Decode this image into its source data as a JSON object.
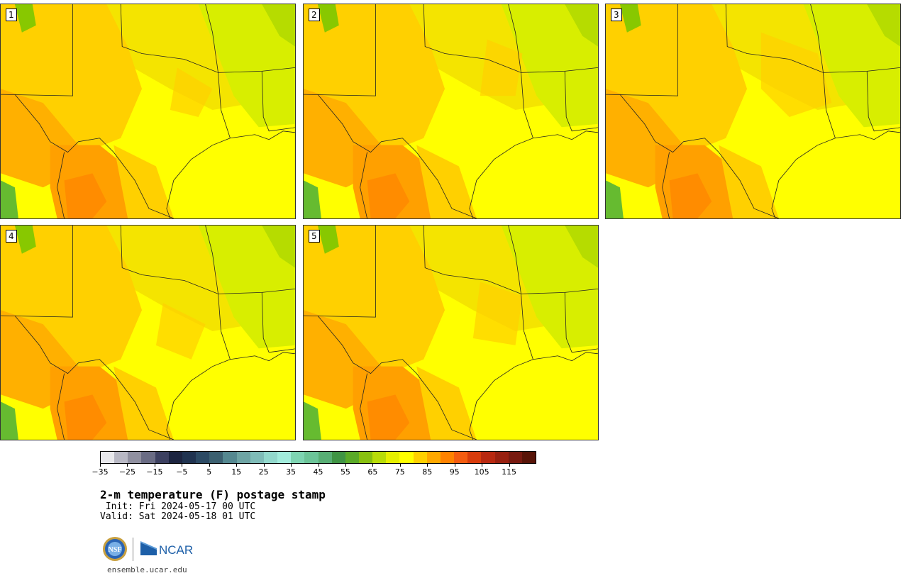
{
  "panels": [
    {
      "label": "1",
      "variant": 0
    },
    {
      "label": "2",
      "variant": 1
    },
    {
      "label": "3",
      "variant": 2
    },
    {
      "label": "4",
      "variant": 3
    },
    {
      "label": "5",
      "variant": 4
    }
  ],
  "colorbar": {
    "colors": [
      "#e8e8ec",
      "#b8b8c4",
      "#9090a0",
      "#6a6c84",
      "#3c4060",
      "#1c2440",
      "#203350",
      "#2c4a64",
      "#3c6070",
      "#558890",
      "#6ea4a4",
      "#7fbcb8",
      "#92d8cc",
      "#a2ecdc",
      "#7ed4b2",
      "#6cc498",
      "#58ae74",
      "#3f9444",
      "#5aaa28",
      "#88c010",
      "#b8dc08",
      "#e6f000",
      "#ffff00",
      "#ffd000",
      "#ffa800",
      "#ff8200",
      "#f45c10",
      "#d83c0c",
      "#b82810",
      "#982010",
      "#781a10",
      "#581408"
    ],
    "tick_labels": [
      "−35",
      "−25",
      "−15",
      "−5",
      "5",
      "15",
      "25",
      "35",
      "45",
      "55",
      "65",
      "75",
      "85",
      "95",
      "105",
      "115"
    ]
  },
  "title": "2-m temperature (F) postage stamp",
  "init": " Init: Fri 2024-05-17 00 UTC",
  "valid": "Valid: Sat 2024-05-18 01 UTC",
  "logos": {
    "nsf": "NSF",
    "ncar": "NCAR"
  },
  "website": "ensemble.ucar.edu"
}
